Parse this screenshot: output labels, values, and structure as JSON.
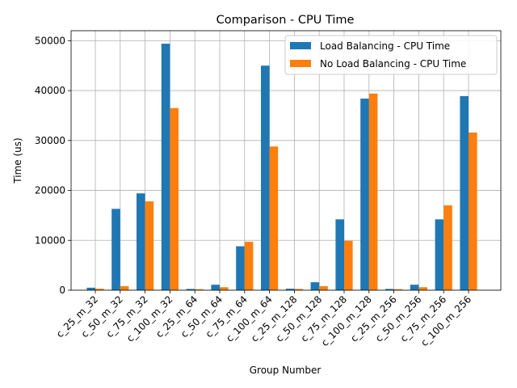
{
  "chart_data": {
    "type": "bar",
    "title": "Comparison - CPU Time",
    "xlabel": "Group Number",
    "ylabel": "Time (us)",
    "ylim": [
      0,
      52000
    ],
    "yticks": [
      0,
      10000,
      20000,
      30000,
      40000,
      50000
    ],
    "grid": true,
    "legend_position": "top-right",
    "categories": [
      "c_25_m_32",
      "c_50_m_32",
      "c_75_m_32",
      "c_100_m_32",
      "c_25_m_64",
      "c_50_m_64",
      "c_75_m_64",
      "c_100_m_64",
      "c_25_m_128",
      "c_50_m_128",
      "c_75_m_128",
      "c_100_m_128",
      "c_25_m_256",
      "c_50_m_256",
      "c_75_m_256",
      "c_100_m_256"
    ],
    "series": [
      {
        "name": "Load Balancing - CPU Time",
        "color": "#1f77b4",
        "values": [
          500,
          16300,
          19400,
          49400,
          250,
          1100,
          8800,
          45000,
          300,
          1600,
          14200,
          38400,
          250,
          1100,
          14200,
          38900
        ]
      },
      {
        "name": "No Load Balancing - CPU Time",
        "color": "#ff7f0e",
        "values": [
          300,
          800,
          17800,
          36500,
          200,
          600,
          9700,
          28800,
          250,
          800,
          9900,
          39400,
          200,
          600,
          17000,
          31600
        ]
      }
    ]
  }
}
